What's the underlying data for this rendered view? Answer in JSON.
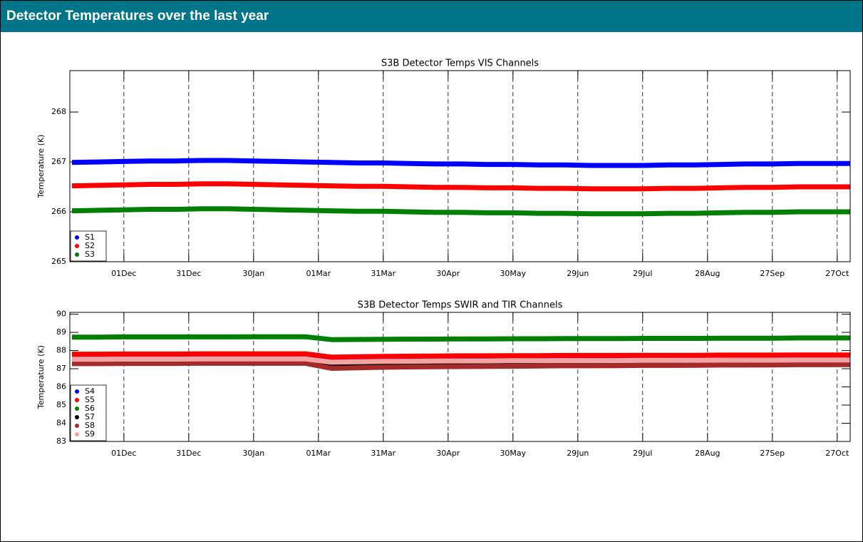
{
  "page_title": "Detector Temperatures over the last year",
  "chart_data": [
    {
      "type": "line",
      "title": "S3B Detector Temps VIS Channels",
      "ylabel": "Temperature (K)",
      "x": [
        -24,
        -12,
        0,
        12,
        24,
        36,
        48,
        60,
        72,
        84,
        96,
        108,
        120,
        132,
        144,
        156,
        168,
        180,
        192,
        204,
        216,
        228,
        240,
        252,
        264,
        276,
        288,
        300,
        312,
        324,
        336
      ],
      "xlim": [
        -25,
        336
      ],
      "xticks": [
        {
          "value": 0,
          "label": "01Dec"
        },
        {
          "value": 30,
          "label": "31Dec"
        },
        {
          "value": 60,
          "label": "30Jan"
        },
        {
          "value": 90,
          "label": "01Mar"
        },
        {
          "value": 120,
          "label": "31Mar"
        },
        {
          "value": 150,
          "label": "30Apr"
        },
        {
          "value": 180,
          "label": "30May"
        },
        {
          "value": 210,
          "label": "29Jun"
        },
        {
          "value": 240,
          "label": "29Jul"
        },
        {
          "value": 270,
          "label": "28Aug"
        },
        {
          "value": 300,
          "label": "27Sep"
        },
        {
          "value": 330,
          "label": "27Oct"
        }
      ],
      "ylim": [
        265,
        268.83
      ],
      "yticks": [
        265,
        266,
        267,
        268
      ],
      "grid": "x",
      "legend": "lower left",
      "series": [
        {
          "name": "S1",
          "color": "#0000ff",
          "values": [
            266.99,
            267.0,
            267.01,
            267.02,
            267.02,
            267.03,
            267.03,
            267.02,
            267.01,
            267.0,
            266.99,
            266.98,
            266.98,
            266.97,
            266.96,
            266.96,
            266.95,
            266.95,
            266.94,
            266.94,
            266.93,
            266.93,
            266.93,
            266.94,
            266.94,
            266.95,
            266.96,
            266.96,
            266.97,
            266.97,
            266.97
          ]
        },
        {
          "name": "S2",
          "color": "#ff0000",
          "values": [
            266.52,
            266.53,
            266.54,
            266.55,
            266.55,
            266.56,
            266.56,
            266.55,
            266.54,
            266.53,
            266.52,
            266.51,
            266.51,
            266.5,
            266.49,
            266.49,
            266.48,
            266.48,
            266.47,
            266.47,
            266.46,
            266.46,
            266.46,
            266.47,
            266.47,
            266.48,
            266.49,
            266.49,
            266.5,
            266.5,
            266.5
          ]
        },
        {
          "name": "S3",
          "color": "#008000",
          "values": [
            266.02,
            266.03,
            266.04,
            266.05,
            266.05,
            266.06,
            266.06,
            266.05,
            266.04,
            266.03,
            266.02,
            266.01,
            266.01,
            266.0,
            265.99,
            265.99,
            265.98,
            265.98,
            265.97,
            265.97,
            265.96,
            265.96,
            265.96,
            265.97,
            265.97,
            265.98,
            265.99,
            265.99,
            266.0,
            266.0,
            266.0
          ]
        }
      ]
    },
    {
      "type": "line",
      "title": "S3B Detector Temps SWIR and TIR Channels",
      "ylabel": "Temperature (K)",
      "x": [
        -24,
        -12,
        0,
        12,
        24,
        36,
        48,
        60,
        72,
        84,
        96,
        108,
        120,
        132,
        144,
        156,
        168,
        180,
        192,
        204,
        216,
        228,
        240,
        252,
        264,
        276,
        288,
        300,
        312,
        324,
        336
      ],
      "xlim": [
        -25,
        336
      ],
      "xticks": [
        {
          "value": 0,
          "label": "01Dec"
        },
        {
          "value": 30,
          "label": "31Dec"
        },
        {
          "value": 60,
          "label": "30Jan"
        },
        {
          "value": 90,
          "label": "01Mar"
        },
        {
          "value": 120,
          "label": "31Mar"
        },
        {
          "value": 150,
          "label": "30Apr"
        },
        {
          "value": 180,
          "label": "30May"
        },
        {
          "value": 210,
          "label": "29Jun"
        },
        {
          "value": 240,
          "label": "29Jul"
        },
        {
          "value": 270,
          "label": "28Aug"
        },
        {
          "value": 300,
          "label": "27Sep"
        },
        {
          "value": 330,
          "label": "27Oct"
        }
      ],
      "ylim": [
        83,
        90.1
      ],
      "yticks": [
        83,
        84,
        85,
        86,
        87,
        88,
        89,
        90
      ],
      "grid": "x",
      "legend": "lower left",
      "series": [
        {
          "name": "S4",
          "color": "#0000ff",
          "values": [
            87.72,
            87.72,
            87.73,
            87.73,
            87.73,
            87.74,
            87.74,
            87.74,
            87.74,
            87.74,
            87.56,
            87.58,
            87.6,
            87.61,
            87.62,
            87.63,
            87.63,
            87.64,
            87.64,
            87.65,
            87.65,
            87.65,
            87.66,
            87.66,
            87.66,
            87.67,
            87.67,
            87.67,
            87.68,
            87.68,
            87.68
          ]
        },
        {
          "name": "S5",
          "color": "#ff0000",
          "values": [
            87.8,
            87.8,
            87.81,
            87.81,
            87.81,
            87.82,
            87.82,
            87.82,
            87.82,
            87.82,
            87.64,
            87.66,
            87.68,
            87.69,
            87.7,
            87.71,
            87.71,
            87.72,
            87.72,
            87.73,
            87.73,
            87.73,
            87.74,
            87.74,
            87.74,
            87.75,
            87.75,
            87.75,
            87.76,
            87.76,
            87.76
          ]
        },
        {
          "name": "S6",
          "color": "#008000",
          "values": [
            88.74,
            88.74,
            88.75,
            88.75,
            88.75,
            88.75,
            88.75,
            88.76,
            88.76,
            88.76,
            88.6,
            88.61,
            88.62,
            88.63,
            88.63,
            88.64,
            88.64,
            88.65,
            88.65,
            88.66,
            88.66,
            88.66,
            88.67,
            88.67,
            88.67,
            88.68,
            88.68,
            88.68,
            88.69,
            88.69,
            88.69
          ]
        },
        {
          "name": "S7",
          "color": "#000000",
          "values": [
            87.38,
            87.38,
            87.39,
            87.39,
            87.39,
            87.4,
            87.4,
            87.4,
            87.4,
            87.4,
            87.12,
            87.15,
            87.18,
            87.2,
            87.21,
            87.22,
            87.23,
            87.24,
            87.25,
            87.26,
            87.26,
            87.27,
            87.28,
            87.28,
            87.29,
            87.3,
            87.3,
            87.31,
            87.32,
            87.32,
            87.33
          ]
        },
        {
          "name": "S8",
          "color": "#a52a2a",
          "values": [
            87.28,
            87.28,
            87.29,
            87.29,
            87.29,
            87.3,
            87.3,
            87.3,
            87.3,
            87.3,
            87.02,
            87.05,
            87.08,
            87.1,
            87.11,
            87.12,
            87.13,
            87.14,
            87.15,
            87.16,
            87.16,
            87.17,
            87.18,
            87.18,
            87.19,
            87.2,
            87.2,
            87.21,
            87.22,
            87.22,
            87.23
          ]
        },
        {
          "name": "S9",
          "color": "#f4a3a3",
          "values": [
            87.52,
            87.52,
            87.53,
            87.53,
            87.53,
            87.54,
            87.54,
            87.54,
            87.54,
            87.54,
            87.36,
            87.38,
            87.4,
            87.41,
            87.42,
            87.43,
            87.43,
            87.44,
            87.44,
            87.45,
            87.45,
            87.45,
            87.46,
            87.46,
            87.46,
            87.47,
            87.47,
            87.47,
            87.48,
            87.48,
            87.48
          ]
        }
      ]
    }
  ]
}
